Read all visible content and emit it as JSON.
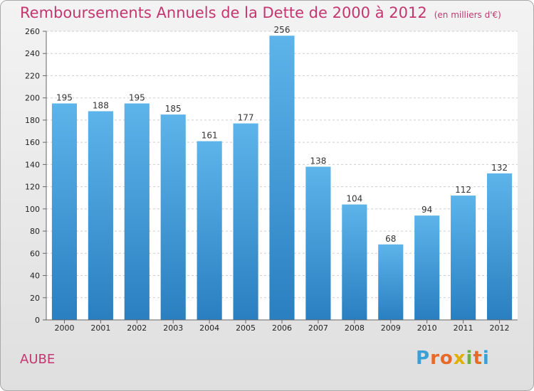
{
  "title": "Remboursements Annuels de la Dette de 2000 à 2012",
  "unit": "(en milliers d'€)",
  "place": "AUBE",
  "logo": {
    "letters": [
      "P",
      "r",
      "o",
      "x",
      "i",
      "t",
      "i"
    ],
    "colors": [
      "#3aa0d6",
      "#e86a28",
      "#e86a28",
      "#e0b000",
      "#6bb33b",
      "#e86a28",
      "#3aa0d6"
    ]
  },
  "bar_color": "#3d9ad9",
  "chart_data": {
    "type": "bar",
    "categories": [
      "2000",
      "2001",
      "2002",
      "2003",
      "2004",
      "2005",
      "2006",
      "2007",
      "2008",
      "2009",
      "2010",
      "2011",
      "2012"
    ],
    "values": [
      195,
      188,
      195,
      185,
      161,
      177,
      256,
      138,
      104,
      68,
      94,
      112,
      132
    ],
    "ylim": [
      0,
      260
    ],
    "yticks": [
      0,
      20,
      40,
      60,
      80,
      100,
      120,
      140,
      160,
      180,
      200,
      220,
      240,
      260
    ],
    "grid": true
  }
}
